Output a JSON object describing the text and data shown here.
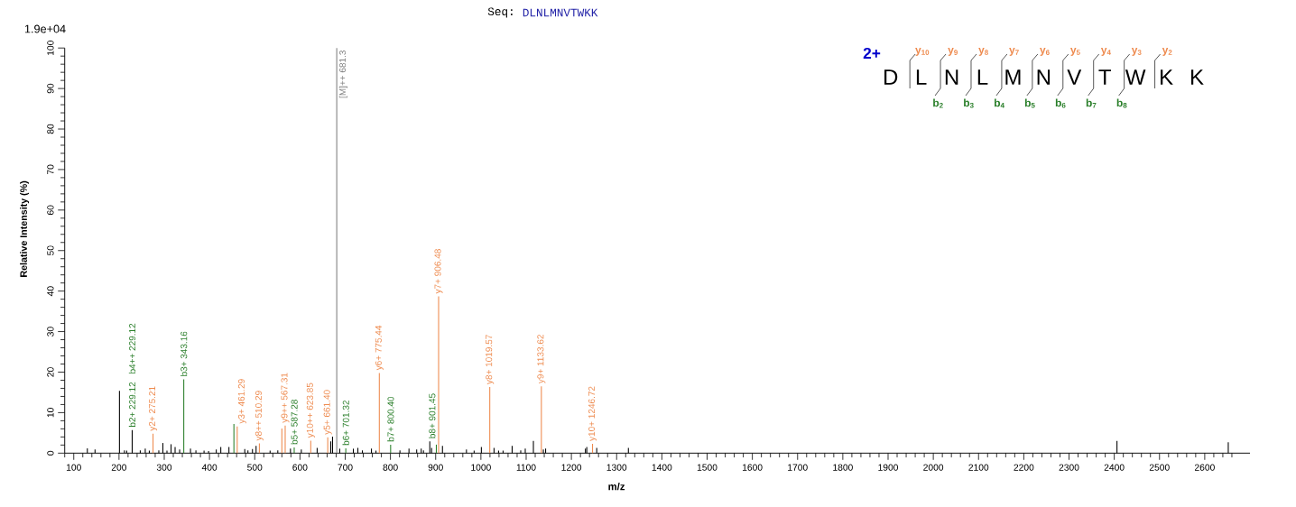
{
  "chart_data": {
    "type": "bar",
    "title": "Seq:",
    "subtitle": "DLNLMNVTWKK",
    "xlabel": "m/z",
    "ylabel": "Relative Intensity (%)",
    "xlim": [
      80,
      2700
    ],
    "ylim": [
      0,
      100
    ],
    "xticks": [
      {
        "value": 80,
        "label": null
      },
      100,
      {
        "value": 120,
        "label": null
      },
      {
        "value": 140,
        "label": null
      },
      {
        "value": 160,
        "label": null
      },
      {
        "value": 180,
        "label": null
      },
      200,
      {
        "value": 220,
        "label": null
      },
      {
        "value": 240,
        "label": null
      },
      {
        "value": 260,
        "label": null
      },
      {
        "value": 280,
        "label": null
      },
      300,
      {
        "value": 320,
        "label": null
      },
      {
        "value": 340,
        "label": null
      },
      {
        "value": 360,
        "label": null
      },
      {
        "value": 380,
        "label": null
      },
      400,
      {
        "value": 420,
        "label": null
      },
      {
        "value": 440,
        "label": null
      },
      {
        "value": 460,
        "label": null
      },
      {
        "value": 480,
        "label": null
      },
      500,
      {
        "value": 520,
        "label": null
      },
      {
        "value": 540,
        "label": null
      },
      {
        "value": 560,
        "label": null
      },
      {
        "value": 580,
        "label": null
      },
      600,
      {
        "value": 620,
        "label": null
      },
      {
        "value": 640,
        "label": null
      },
      {
        "value": 660,
        "label": null
      },
      {
        "value": 680,
        "label": null
      },
      700,
      {
        "value": 720,
        "label": null
      },
      {
        "value": 740,
        "label": null
      },
      {
        "value": 760,
        "label": null
      },
      {
        "value": 780,
        "label": null
      },
      800,
      {
        "value": 820,
        "label": null
      },
      {
        "value": 840,
        "label": null
      },
      {
        "value": 860,
        "label": null
      },
      {
        "value": 880,
        "label": null
      },
      900,
      {
        "value": 920,
        "label": null
      },
      {
        "value": 940,
        "label": null
      },
      {
        "value": 960,
        "label": null
      },
      {
        "value": 980,
        "label": null
      },
      1000,
      {
        "value": 1020,
        "label": null
      },
      {
        "value": 1040,
        "label": null
      },
      {
        "value": 1060,
        "label": null
      },
      {
        "value": 1080,
        "label": null
      },
      1100,
      {
        "value": 1120,
        "label": null
      },
      {
        "value": 1140,
        "label": null
      },
      {
        "value": 1160,
        "label": null
      },
      {
        "value": 1180,
        "label": null
      },
      1200,
      {
        "value": 1220,
        "label": null
      },
      {
        "value": 1240,
        "label": null
      },
      {
        "value": 1260,
        "label": null
      },
      {
        "value": 1280,
        "label": null
      },
      1300,
      {
        "value": 1320,
        "label": null
      },
      {
        "value": 1340,
        "label": null
      },
      {
        "value": 1360,
        "label": null
      },
      {
        "value": 1380,
        "label": null
      },
      1400,
      {
        "value": 1420,
        "label": null
      },
      {
        "value": 1440,
        "label": null
      },
      {
        "value": 1460,
        "label": null
      },
      {
        "value": 1480,
        "label": null
      },
      1500,
      {
        "value": 1520,
        "label": null
      },
      {
        "value": 1540,
        "label": null
      },
      {
        "value": 1560,
        "label": null
      },
      {
        "value": 1580,
        "label": null
      },
      1600,
      {
        "value": 1620,
        "label": null
      },
      {
        "value": 1640,
        "label": null
      },
      {
        "value": 1660,
        "label": null
      },
      {
        "value": 1680,
        "label": null
      },
      1700,
      {
        "value": 1720,
        "label": null
      },
      {
        "value": 1740,
        "label": null
      },
      {
        "value": 1760,
        "label": null
      },
      {
        "value": 1780,
        "label": null
      },
      1800,
      {
        "value": 1820,
        "label": null
      },
      {
        "value": 1840,
        "label": null
      },
      {
        "value": 1860,
        "label": null
      },
      {
        "value": 1880,
        "label": null
      },
      1900,
      {
        "value": 1920,
        "label": null
      },
      {
        "value": 1940,
        "label": null
      },
      {
        "value": 1960,
        "label": null
      },
      {
        "value": 1980,
        "label": null
      },
      2000,
      {
        "value": 2020,
        "label": null
      },
      {
        "value": 2040,
        "label": null
      },
      {
        "value": 2060,
        "label": null
      },
      {
        "value": 2080,
        "label": null
      },
      2100,
      {
        "value": 2120,
        "label": null
      },
      {
        "value": 2140,
        "label": null
      },
      {
        "value": 2160,
        "label": null
      },
      {
        "value": 2180,
        "label": null
      },
      2200,
      {
        "value": 2220,
        "label": null
      },
      {
        "value": 2240,
        "label": null
      },
      {
        "value": 2260,
        "label": null
      },
      {
        "value": 2280,
        "label": null
      },
      2300,
      {
        "value": 2320,
        "label": null
      },
      {
        "value": 2340,
        "label": null
      },
      {
        "value": 2360,
        "label": null
      },
      {
        "value": 2380,
        "label": null
      },
      2400,
      {
        "value": 2420,
        "label": null
      },
      {
        "value": 2440,
        "label": null
      },
      {
        "value": 2460,
        "label": null
      },
      {
        "value": 2480,
        "label": null
      },
      2500,
      {
        "value": 2520,
        "label": null
      },
      {
        "value": 2540,
        "label": null
      },
      {
        "value": 2560,
        "label": null
      },
      {
        "value": 2580,
        "label": null
      },
      2600,
      {
        "value": 2620,
        "label": null
      },
      {
        "value": 2640,
        "label": null
      },
      {
        "value": 2660,
        "label": null
      }
    ],
    "yticks": [
      0,
      {
        "value": 2,
        "label": null
      },
      {
        "value": 4,
        "label": null
      },
      {
        "value": 6,
        "label": null
      },
      {
        "value": 8,
        "label": null
      },
      10,
      {
        "value": 12,
        "label": null
      },
      {
        "value": 14,
        "label": null
      },
      {
        "value": 16,
        "label": null
      },
      {
        "value": 18,
        "label": null
      },
      20,
      {
        "value": 22,
        "label": null
      },
      {
        "value": 24,
        "label": null
      },
      {
        "value": 26,
        "label": null
      },
      {
        "value": 28,
        "label": null
      },
      30,
      {
        "value": 32,
        "label": null
      },
      {
        "value": 34,
        "label": null
      },
      {
        "value": 36,
        "label": null
      },
      {
        "value": 38,
        "label": null
      },
      40,
      {
        "value": 42,
        "label": null
      },
      {
        "value": 44,
        "label": null
      },
      {
        "value": 46,
        "label": null
      },
      {
        "value": 48,
        "label": null
      },
      50,
      {
        "value": 52,
        "label": null
      },
      {
        "value": 54,
        "label": null
      },
      {
        "value": 56,
        "label": null
      },
      {
        "value": 58,
        "label": null
      },
      60,
      {
        "value": 62,
        "label": null
      },
      {
        "value": 64,
        "label": null
      },
      {
        "value": 66,
        "label": null
      },
      {
        "value": 68,
        "label": null
      },
      70,
      {
        "value": 72,
        "label": null
      },
      {
        "value": 74,
        "label": null
      },
      {
        "value": 76,
        "label": null
      },
      {
        "value": 78,
        "label": null
      },
      80,
      {
        "value": 82,
        "label": null
      },
      {
        "value": 84,
        "label": null
      },
      {
        "value": 86,
        "label": null
      },
      {
        "value": 88,
        "label": null
      },
      90,
      {
        "value": 92,
        "label": null
      },
      {
        "value": 94,
        "label": null
      },
      {
        "value": 96,
        "label": null
      },
      {
        "value": 98,
        "label": null
      },
      100
    ],
    "series": [
      {
        "color": "#000000",
        "x": [
          130,
          147,
          201,
          212,
          217,
          247,
          258,
          267,
          288,
          297,
          306,
          315,
          324,
          334,
          358,
          370,
          388,
          398,
          415,
          425,
          443,
          478,
          485,
          495,
          503,
          534,
          551,
          579,
          603,
          638,
          668,
          672,
          688,
          718,
          728,
          738,
          758,
          768,
          821,
          841,
          858,
          868,
          873,
          887,
          891,
          915,
          968,
          985,
          1001,
          1029,
          1039,
          1049,
          1069,
          1088,
          1098,
          1116,
          1138,
          1143,
          1231,
          1234,
          1256,
          1326,
          2406,
          2652
        ],
        "values": [
          1.2,
          0.9,
          15.4,
          0.7,
          0.6,
          0.7,
          1.1,
          0.6,
          0.7,
          2.5,
          0.6,
          2.2,
          1.5,
          0.9,
          1.1,
          0.7,
          0.6,
          0.5,
          0.9,
          1.5,
          1.5,
          1.0,
          0.7,
          1.0,
          1.8,
          0.6,
          0.7,
          1.1,
          0.9,
          1.3,
          2.9,
          4.1,
          1.1,
          1.1,
          1.3,
          0.7,
          1.1,
          0.6,
          0.7,
          1.1,
          0.9,
          1.1,
          0.7,
          2.9,
          1.3,
          1.8,
          0.9,
          0.6,
          1.5,
          1.3,
          0.6,
          0.6,
          1.8,
          0.7,
          1.1,
          3.0,
          0.9,
          1.1,
          1.1,
          1.5,
          1.3,
          1.3,
          3.0,
          2.7
        ]
      },
      {
        "color": "#2a7f2a",
        "colors": [
          "#000000",
          "#2a7f2a",
          "#2a7f2a",
          "#2a7f2a",
          "#2a7f2a",
          "#2a7f2a",
          "#2a7f2a"
        ],
        "x": [
          229.12,
          343.16,
          454,
          587.28,
          701.32,
          800.4,
          901.45
        ],
        "values": [
          5.7,
          18.2,
          7.2,
          1.4,
          1.2,
          2.1,
          2.1
        ]
      },
      {
        "color": "#ee8a4e",
        "x": [
          275.21,
          461.29,
          510.29,
          560,
          567.31,
          623.85,
          661.4,
          775.44,
          906.48,
          1019.57,
          1133.62,
          1246.72
        ],
        "values": [
          4.8,
          6.6,
          2.4,
          6.1,
          6.8,
          3.1,
          3.9,
          19.8,
          38.7,
          16.3,
          16.5,
          2.3
        ]
      },
      {
        "color": "#808080",
        "x": [
          681.3
        ],
        "values": [
          100
        ]
      }
    ],
    "annotations": [
      "1.9e+04",
      "2+",
      "D",
      "L",
      "N",
      "L",
      "M",
      "N",
      "V",
      "T",
      "W",
      "K",
      "K",
      "y$_{10}$",
      "y$_{9}$",
      "y$_{8}$",
      "y$_{7}$",
      "y$_{6}$",
      "y$_{5}$",
      "y$_{4}$",
      "y$_{3}$",
      "y$_{2}$",
      "b$_{2}$",
      "b$_{3}$",
      "b$_{4}$",
      "b$_{5}$",
      "b$_{6}$",
      "b$_{7}$",
      "b$_{8}$",
      {
        "text": "b2+ 229.12",
        "x": 229.12,
        "y": 5.7
      },
      "b4++ 229.12",
      {
        "text": "y2+ 275.21",
        "x": 275.21,
        "y": 4.8
      },
      {
        "text": "b3+ 343.16",
        "x": 343.16,
        "y": 18.2
      },
      {
        "text": "y3+ 461.29",
        "x": 461.29,
        "y": 6.6
      },
      {
        "text": "y8++ 510.29",
        "x": 510.29,
        "y": 2.4
      },
      {
        "text": "y9++ 567.31",
        "x": 567.31,
        "y": 6.8
      },
      {
        "text": "b5+ 587.28",
        "x": 587.28,
        "y": 1.4
      },
      {
        "text": "y10++ 623.85",
        "x": 623.85,
        "y": 3.1
      },
      {
        "text": "y5+ 661.40",
        "x": 661.4,
        "y": 3.9
      },
      {
        "text": "[M]++ 681.3",
        "x": 681.3,
        "y": 100
      },
      {
        "text": "b6+ 701.32",
        "x": 701.32,
        "y": 1.2
      },
      {
        "text": "y6+ 775.44",
        "x": 775.44,
        "y": 19.8
      },
      {
        "text": "b7+ 800.40",
        "x": 800.4,
        "y": 2.1
      },
      {
        "text": "b8+ 901.45",
        "x": 901.45,
        "y": 2.1
      },
      {
        "text": "y7+ 906.48",
        "x": 906.48,
        "y": 38.7
      },
      {
        "text": "y8+ 1019.57",
        "x": 1019.57,
        "y": 16.3
      },
      {
        "text": "y9+ 1133.62",
        "x": 1133.62,
        "y": 16.5
      },
      {
        "text": "y10+ 1246.72",
        "x": 1246.72,
        "y": 2.3
      }
    ]
  }
}
